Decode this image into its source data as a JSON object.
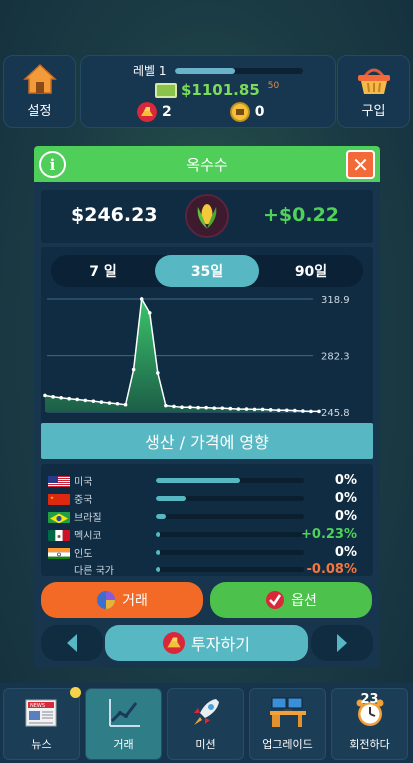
{
  "topbar": {
    "settings_label": "설정",
    "shop_label": "구입",
    "level_label": "레벨 1",
    "level_progress": 0.47,
    "money": "$1101.85",
    "money_small": "50",
    "gold_count": "2",
    "token_count": "0"
  },
  "panel": {
    "title": "옥수수",
    "price": "$246.23",
    "change": "+$0.22",
    "tabs": [
      {
        "label": "7 일",
        "active": false
      },
      {
        "label": "35일",
        "active": true
      },
      {
        "label": "90일",
        "active": false
      }
    ],
    "impact_label": "생산 / 가격에 영향",
    "trade_label": "거래",
    "option_label": "옵션",
    "invest_label": "투자하기"
  },
  "chart_data": {
    "type": "area",
    "y_ticks": [
      "318.9",
      "282.3",
      "245.8"
    ],
    "ylim": [
      245.8,
      318.9
    ],
    "x": [
      1,
      2,
      3,
      4,
      5,
      6,
      7,
      8,
      9,
      10,
      11,
      12,
      13,
      14,
      15,
      16,
      17,
      18,
      19,
      20,
      21,
      22,
      23,
      24,
      25,
      26,
      27,
      28,
      29,
      30,
      31,
      32,
      33,
      34,
      35
    ],
    "values": [
      256.5,
      255.6,
      255.0,
      254.4,
      253.9,
      253.3,
      252.8,
      252.2,
      251.6,
      251.1,
      250.5,
      273.3,
      318.9,
      309.9,
      271.1,
      249.9,
      249.4,
      248.9,
      248.9,
      248.6,
      248.6,
      248.3,
      248.3,
      248.0,
      247.7,
      247.7,
      247.5,
      247.5,
      247.2,
      246.9,
      246.9,
      246.7,
      246.4,
      246.2,
      246.2
    ],
    "fill_color": "#2e9a58",
    "line_color": "#ffffff",
    "grid": true
  },
  "countries": [
    {
      "name": "미국",
      "bar": 0.57,
      "value": "0%",
      "tone": "neutral",
      "flag": "us"
    },
    {
      "name": "중국",
      "bar": 0.2,
      "value": "0%",
      "tone": "neutral",
      "flag": "cn"
    },
    {
      "name": "브라질",
      "bar": 0.07,
      "value": "0%",
      "tone": "neutral",
      "flag": "br"
    },
    {
      "name": "멕시코",
      "bar": 0.03,
      "value": "+0.23%",
      "tone": "pos",
      "flag": "mx"
    },
    {
      "name": "인도",
      "bar": 0.03,
      "value": "0%",
      "tone": "neutral",
      "flag": "in"
    },
    {
      "name": "다른 국가",
      "bar": 0.03,
      "value": "-0.08%",
      "tone": "neg",
      "flag": "none"
    }
  ],
  "bottom_nav": [
    {
      "label": "뉴스",
      "icon": "newspaper-icon",
      "active": false
    },
    {
      "label": "거래",
      "icon": "chart-line-icon",
      "active": true
    },
    {
      "label": "미션",
      "icon": "rocket-icon",
      "active": false
    },
    {
      "label": "업그레이드",
      "icon": "office-desk-icon",
      "active": false
    },
    {
      "label": "회전하다",
      "icon": "alarm-clock-icon",
      "active": false,
      "day": "23"
    }
  ],
  "colors": {
    "accent": "#57b8c3",
    "green": "#4fce5a",
    "orange": "#f26a25",
    "panel": "#17364d"
  }
}
